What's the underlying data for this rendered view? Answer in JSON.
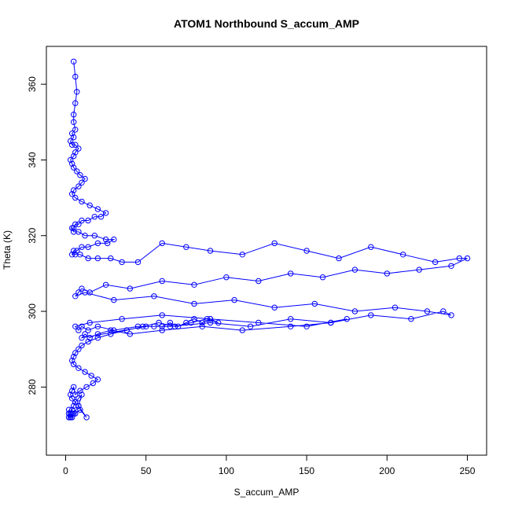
{
  "chart_data": {
    "type": "line",
    "title": "ATOM1 Northbound S_accum_AMP",
    "xlabel": "S_accum_AMP",
    "ylabel": "Theta (K)",
    "xlim": [
      -12,
      262
    ],
    "ylim": [
      262,
      370
    ],
    "x_ticks": [
      0,
      50,
      100,
      150,
      200,
      250
    ],
    "y_ticks": [
      280,
      300,
      320,
      340,
      360
    ],
    "x_tick_labels": [
      "0",
      "50",
      "100",
      "150",
      "200",
      "250"
    ],
    "y_tick_labels": [
      "280",
      "300",
      "320",
      "340",
      "360"
    ],
    "series_color": "#0000ff",
    "marker": "open-circle",
    "grid": false,
    "series": [
      {
        "x": [
          5,
          6,
          7,
          6,
          5,
          5,
          6,
          4,
          5,
          3,
          4,
          6,
          8,
          6,
          5,
          3,
          4,
          5,
          7,
          9,
          12,
          10,
          8,
          5,
          4,
          6,
          10,
          15,
          20,
          25,
          22,
          18,
          14,
          10,
          8,
          6,
          5,
          4,
          5,
          8,
          12,
          18,
          25,
          30,
          26,
          20,
          14,
          10,
          7,
          5,
          4,
          6,
          9,
          14,
          20,
          28,
          35,
          45,
          60,
          75,
          90,
          110,
          130,
          150,
          170,
          190,
          210,
          230,
          245,
          250,
          240,
          220,
          200,
          180,
          160,
          140,
          120,
          100,
          80,
          60,
          40,
          25,
          15,
          10,
          8,
          6,
          12,
          30,
          55,
          80,
          105,
          130,
          155,
          180,
          205,
          225,
          240,
          235,
          215,
          190,
          165,
          140,
          115,
          90,
          65,
          45,
          30,
          20,
          14,
          10,
          8,
          6,
          15,
          35,
          60,
          90,
          120,
          150,
          175,
          165,
          140,
          110,
          85,
          60,
          40,
          28,
          20,
          15,
          12,
          10,
          50,
          55,
          60,
          65,
          70,
          75,
          80,
          85,
          90,
          95,
          88,
          78,
          68,
          58,
          48,
          38,
          28,
          20,
          14,
          10,
          8,
          6,
          5,
          4,
          5,
          8,
          12,
          16,
          20,
          17,
          13,
          9,
          6,
          5,
          4,
          3,
          4,
          6,
          8,
          10,
          8,
          6,
          5,
          4,
          3,
          2,
          3,
          4,
          6,
          9,
          13,
          8,
          5,
          3,
          2,
          3,
          2,
          2,
          3,
          4
        ],
        "y": [
          366,
          362,
          358,
          355,
          352,
          350,
          348,
          347,
          346,
          345,
          344,
          344,
          343,
          342,
          341,
          340,
          339,
          338,
          337,
          336,
          335,
          334,
          333,
          332,
          331,
          330,
          329,
          328,
          327,
          326,
          325,
          325,
          324,
          324,
          323,
          323,
          322,
          322,
          321,
          321,
          320,
          320,
          319,
          319,
          318,
          318,
          317,
          317,
          316,
          316,
          315,
          315,
          315,
          314,
          314,
          314,
          313,
          313,
          318,
          317,
          316,
          315,
          318,
          316,
          314,
          317,
          315,
          313,
          314,
          314,
          312,
          311,
          310,
          311,
          309,
          310,
          308,
          309,
          307,
          308,
          306,
          307,
          305,
          306,
          305,
          304,
          305,
          303,
          304,
          302,
          303,
          301,
          302,
          300,
          301,
          300,
          299,
          300,
          298,
          299,
          297,
          298,
          296,
          297,
          296,
          296,
          295,
          296,
          295,
          296,
          295,
          296,
          297,
          298,
          299,
          298,
          297,
          296,
          298,
          297,
          296,
          295,
          296,
          295,
          294,
          295,
          294,
          293,
          294,
          293,
          296,
          296,
          296,
          297,
          296,
          297,
          298,
          297,
          298,
          297,
          298,
          297,
          296,
          297,
          296,
          295,
          294,
          293,
          292,
          291,
          290,
          289,
          288,
          287,
          286,
          285,
          284,
          283,
          282,
          281,
          280,
          279,
          278,
          280,
          279,
          278,
          277,
          276,
          275,
          278,
          277,
          276,
          275,
          274,
          273,
          274,
          273,
          272,
          273,
          274,
          272,
          275,
          273,
          272,
          273,
          272,
          273,
          272,
          272,
          273
        ]
      }
    ]
  }
}
